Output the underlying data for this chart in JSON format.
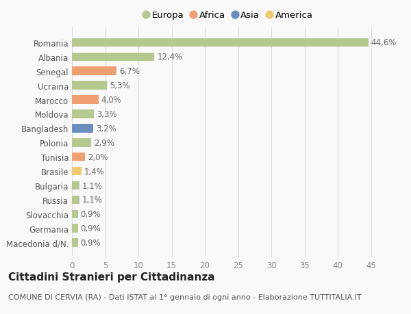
{
  "categories": [
    "Macedonia d/N.",
    "Germania",
    "Slovacchia",
    "Russia",
    "Bulgaria",
    "Brasile",
    "Tunisia",
    "Polonia",
    "Bangladesh",
    "Moldova",
    "Marocco",
    "Ucraina",
    "Senegal",
    "Albania",
    "Romania"
  ],
  "values": [
    0.9,
    0.9,
    0.9,
    1.1,
    1.1,
    1.4,
    2.0,
    2.9,
    3.2,
    3.3,
    4.0,
    5.3,
    6.7,
    12.4,
    44.6
  ],
  "colors": [
    "#b5c98e",
    "#b5c98e",
    "#b5c98e",
    "#b5c98e",
    "#b5c98e",
    "#f0c96e",
    "#f0a070",
    "#b5c98e",
    "#6a8fbf",
    "#b5c98e",
    "#f0a070",
    "#b5c98e",
    "#f0a070",
    "#b5c98e",
    "#b5c98e"
  ],
  "labels": [
    "0,9%",
    "0,9%",
    "0,9%",
    "1,1%",
    "1,1%",
    "1,4%",
    "2,0%",
    "2,9%",
    "3,2%",
    "3,3%",
    "4,0%",
    "5,3%",
    "6,7%",
    "12,4%",
    "44,6%"
  ],
  "legend": {
    "Europa": "#b5c98e",
    "Africa": "#f0a070",
    "Asia": "#6a8fbf",
    "America": "#f0c96e"
  },
  "title": "Cittadini Stranieri per Cittadinanza",
  "subtitle": "COMUNE DI CERVIA (RA) - Dati ISTAT al 1° gennaio di ogni anno - Elaborazione TUTTITALIA.IT",
  "xlim": [
    0,
    47
  ],
  "xticks": [
    0,
    5,
    10,
    15,
    20,
    25,
    30,
    35,
    40,
    45
  ],
  "background_color": "#f9f9f9",
  "grid_color": "#dddddd",
  "bar_height": 0.6,
  "label_fontsize": 8.5,
  "tick_fontsize": 8.5,
  "title_fontsize": 11,
  "subtitle_fontsize": 8
}
